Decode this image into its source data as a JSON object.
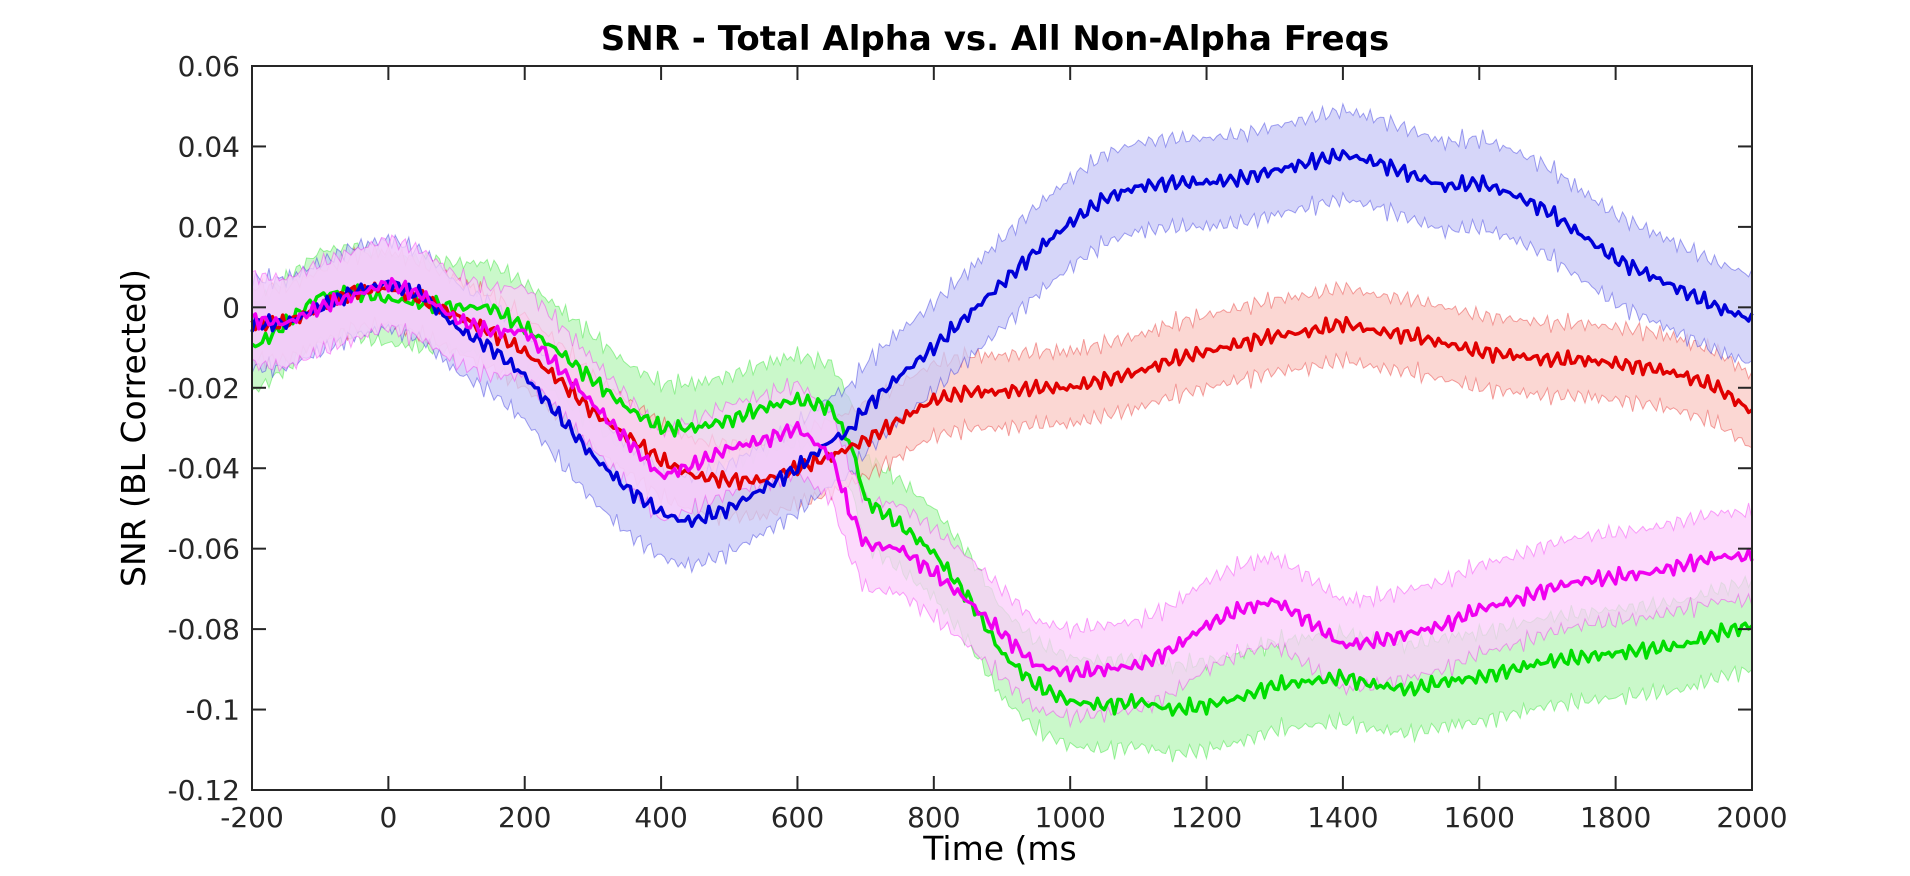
{
  "chart_data": {
    "type": "line",
    "title": "SNR - Total Alpha vs. All Non-Alpha Freqs",
    "xlabel": "Time (ms",
    "ylabel": "SNR (BL Corrected)",
    "xlim": [
      -200,
      2000
    ],
    "ylim": [
      -0.12,
      0.06
    ],
    "xticks": [
      -200,
      0,
      200,
      400,
      600,
      800,
      1000,
      1200,
      1400,
      1600,
      1800,
      2000
    ],
    "yticks": [
      0.06,
      0.04,
      0.02,
      0,
      -0.02,
      -0.04,
      -0.06,
      -0.08,
      -0.1,
      -0.12
    ],
    "xtick_labels": [
      "-200",
      "0",
      "200",
      "400",
      "600",
      "800",
      "1000",
      "1200",
      "1400",
      "1600",
      "1800",
      "2000"
    ],
    "ytick_labels": [
      "0.06",
      "0.04",
      "0.02",
      "0",
      "-0.02",
      "-0.04",
      "-0.06",
      "-0.08",
      "-0.1",
      "-0.12"
    ],
    "grid": false,
    "series": [
      {
        "color": "#00dd00",
        "fill": "#b8f5b8",
        "band_halfwidth": 0.011,
        "x": [
          -200,
          -180,
          -150,
          -100,
          -50,
          0,
          50,
          100,
          150,
          200,
          250,
          300,
          350,
          400,
          450,
          500,
          550,
          600,
          650,
          680,
          700,
          750,
          800,
          850,
          900,
          950,
          1000,
          1050,
          1100,
          1150,
          1200,
          1250,
          1300,
          1350,
          1400,
          1450,
          1500,
          1550,
          1600,
          1650,
          1700,
          1750,
          1800,
          1850,
          1900,
          1950,
          2000
        ],
        "y": [
          -0.01,
          -0.008,
          -0.004,
          0.003,
          0.004,
          0.002,
          0.001,
          0.0,
          0.0,
          -0.005,
          -0.011,
          -0.018,
          -0.025,
          -0.03,
          -0.03,
          -0.028,
          -0.025,
          -0.023,
          -0.025,
          -0.035,
          -0.048,
          -0.054,
          -0.061,
          -0.072,
          -0.086,
          -0.094,
          -0.098,
          -0.099,
          -0.098,
          -0.1,
          -0.099,
          -0.097,
          -0.094,
          -0.093,
          -0.092,
          -0.094,
          -0.095,
          -0.093,
          -0.092,
          -0.09,
          -0.088,
          -0.087,
          -0.086,
          -0.085,
          -0.084,
          -0.081,
          -0.079
        ]
      },
      {
        "color": "#e00000",
        "fill": "#f9c9c4",
        "band_halfwidth": 0.009,
        "x": [
          -200,
          -150,
          -100,
          -50,
          0,
          50,
          100,
          150,
          200,
          250,
          300,
          350,
          400,
          450,
          500,
          550,
          600,
          650,
          700,
          750,
          800,
          850,
          900,
          950,
          1000,
          1050,
          1100,
          1150,
          1200,
          1250,
          1300,
          1350,
          1400,
          1450,
          1500,
          1550,
          1600,
          1650,
          1700,
          1750,
          1800,
          1850,
          1900,
          1950,
          2000
        ],
        "y": [
          -0.004,
          -0.004,
          0.0,
          0.004,
          0.005,
          0.002,
          -0.002,
          -0.006,
          -0.011,
          -0.018,
          -0.026,
          -0.032,
          -0.038,
          -0.042,
          -0.043,
          -0.043,
          -0.04,
          -0.037,
          -0.033,
          -0.028,
          -0.023,
          -0.021,
          -0.021,
          -0.02,
          -0.02,
          -0.018,
          -0.016,
          -0.013,
          -0.011,
          -0.009,
          -0.007,
          -0.006,
          -0.004,
          -0.006,
          -0.007,
          -0.009,
          -0.011,
          -0.012,
          -0.013,
          -0.013,
          -0.014,
          -0.015,
          -0.017,
          -0.02,
          -0.026
        ]
      },
      {
        "color": "#0000d8",
        "fill": "#c8c8f7",
        "band_halfwidth": 0.011,
        "x": [
          -200,
          -150,
          -100,
          -50,
          0,
          50,
          100,
          150,
          200,
          250,
          300,
          350,
          400,
          430,
          450,
          500,
          550,
          600,
          650,
          675,
          700,
          750,
          800,
          850,
          900,
          950,
          1000,
          1050,
          1100,
          1150,
          1200,
          1250,
          1300,
          1350,
          1400,
          1450,
          1500,
          1550,
          1600,
          1650,
          1700,
          1750,
          1800,
          1850,
          1900,
          1950,
          2000
        ],
        "y": [
          -0.004,
          -0.004,
          0.0,
          0.004,
          0.006,
          0.003,
          -0.005,
          -0.01,
          -0.017,
          -0.027,
          -0.037,
          -0.045,
          -0.051,
          -0.053,
          -0.053,
          -0.05,
          -0.045,
          -0.04,
          -0.033,
          -0.031,
          -0.025,
          -0.017,
          -0.01,
          -0.002,
          0.006,
          0.014,
          0.021,
          0.027,
          0.03,
          0.031,
          0.031,
          0.032,
          0.034,
          0.036,
          0.038,
          0.036,
          0.033,
          0.03,
          0.031,
          0.028,
          0.024,
          0.018,
          0.012,
          0.008,
          0.004,
          0.0,
          -0.003
        ]
      },
      {
        "color": "#f000f0",
        "fill": "#fbcdfb",
        "band_halfwidth": 0.011,
        "x": [
          -200,
          -150,
          -100,
          -50,
          0,
          50,
          100,
          150,
          200,
          250,
          300,
          350,
          400,
          450,
          500,
          550,
          600,
          650,
          675,
          700,
          750,
          800,
          850,
          900,
          950,
          1000,
          1050,
          1100,
          1150,
          1200,
          1250,
          1300,
          1350,
          1400,
          1450,
          1500,
          1550,
          1600,
          1650,
          1700,
          1750,
          1800,
          1850,
          1900,
          1950,
          2000
        ],
        "y": [
          -0.003,
          -0.004,
          0.0,
          0.003,
          0.006,
          0.003,
          -0.003,
          -0.006,
          -0.006,
          -0.015,
          -0.024,
          -0.033,
          -0.042,
          -0.039,
          -0.035,
          -0.033,
          -0.03,
          -0.037,
          -0.05,
          -0.059,
          -0.06,
          -0.066,
          -0.073,
          -0.081,
          -0.089,
          -0.091,
          -0.09,
          -0.089,
          -0.085,
          -0.079,
          -0.075,
          -0.073,
          -0.078,
          -0.084,
          -0.083,
          -0.081,
          -0.079,
          -0.075,
          -0.073,
          -0.07,
          -0.068,
          -0.067,
          -0.066,
          -0.064,
          -0.062,
          -0.062
        ]
      }
    ]
  }
}
